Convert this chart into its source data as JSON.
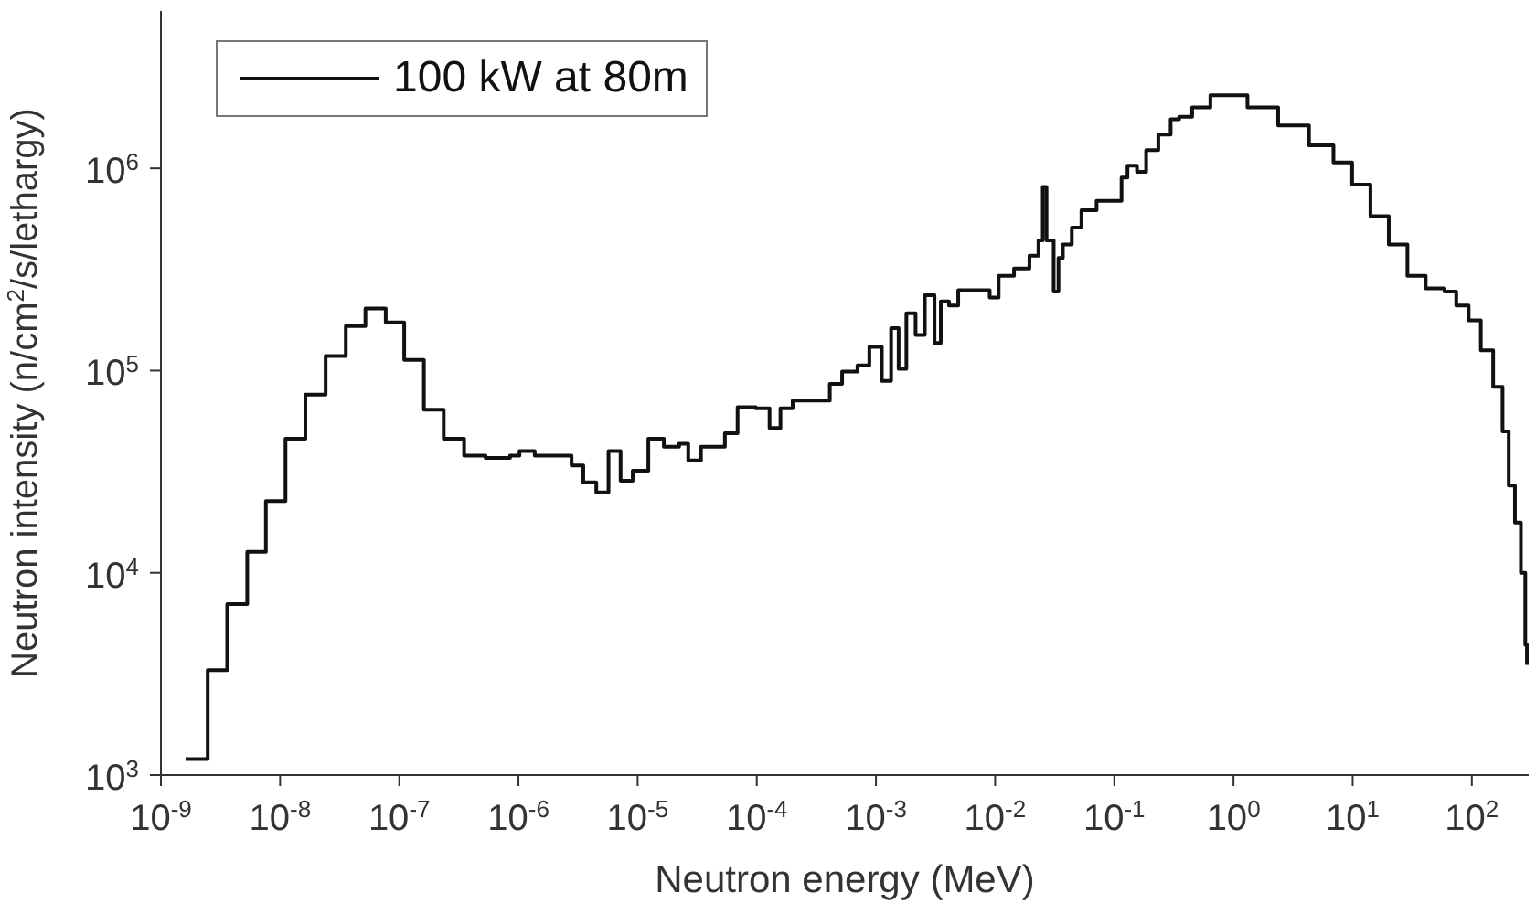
{
  "chart_data": {
    "type": "step",
    "xlabel": "Neutron energy (MeV)",
    "ylabel": "Neutron intensity (n/cm$^{2}$/s/lethargy)",
    "log": "xy",
    "legend": "top left",
    "marker": "none",
    "line_style": "solid",
    "xlim": [
      1e-09,
      300
    ],
    "ylim": [
      1000,
      6000000
    ],
    "xticks": [
      {
        "value": 1e-09,
        "label": "10$^{-9}$"
      },
      {
        "value": 1e-08,
        "label": "10$^{-8}$"
      },
      {
        "value": 1e-07,
        "label": "10$^{-7}$"
      },
      {
        "value": 1e-06,
        "label": "10$^{-6}$"
      },
      {
        "value": 1e-05,
        "label": "10$^{-5}$"
      },
      {
        "value": 0.0001,
        "label": "10$^{-4}$"
      },
      {
        "value": 0.001,
        "label": "10$^{-3}$"
      },
      {
        "value": 0.01,
        "label": "10$^{-2}$"
      },
      {
        "value": 0.1,
        "label": "10$^{-1}$"
      },
      {
        "value": 1,
        "label": "10$^{0}$"
      },
      {
        "value": 10,
        "label": "10$^{1}$"
      },
      {
        "value": 100,
        "label": "10$^{2}$"
      }
    ],
    "yticks": [
      {
        "value": 1000,
        "label": "10$^{3}$"
      },
      {
        "value": 10000,
        "label": "10$^{4}$"
      },
      {
        "value": 100000,
        "label": "10$^{5}$"
      },
      {
        "value": 1000000,
        "label": "10$^{6}$"
      }
    ],
    "series": [
      {
        "name": "100 kW at 80m",
        "color": "#111111",
        "x": [
          1.61e-09,
          2.47e-09,
          3.6e-09,
          5.3e-09,
          7.6e-09,
          1.11e-08,
          1.63e-08,
          2.41e-08,
          3.56e-08,
          5.2e-08,
          7.7e-08,
          1.1e-07,
          1.61e-07,
          2.36e-07,
          3.5e-07,
          5.3e-07,
          8.5e-07,
          1.02e-06,
          1.37e-06,
          2.79e-06,
          3.5e-06,
          4.5e-06,
          5.7e-06,
          7.2e-06,
          9.1e-06,
          1.23e-05,
          1.66e-05,
          2.23e-05,
          2.66e-05,
          3.4e-05,
          5.4e-05,
          6.9e-05,
          9.8e-05,
          0.000128,
          0.000158,
          0.0002,
          0.00041,
          0.00052,
          0.0007,
          0.00088,
          0.00112,
          0.00134,
          0.00155,
          0.0018,
          0.00215,
          0.00257,
          0.0031,
          0.0035,
          0.0041,
          0.0049,
          0.009,
          0.0107,
          0.0144,
          0.0194,
          0.0231,
          0.0251,
          0.027,
          0.031,
          0.034,
          0.037,
          0.044,
          0.053,
          0.071,
          0.115,
          0.129,
          0.155,
          0.185,
          0.234,
          0.297,
          0.35,
          0.45,
          0.64,
          0.97,
          1.31,
          2.37,
          4.3,
          6.9,
          9.9,
          14.1,
          20.1,
          28.8,
          41,
          59,
          74,
          94,
          119,
          151,
          181,
          204,
          230,
          258,
          281,
          290
        ],
        "values": [
          1200,
          3300,
          7000,
          12700,
          22600,
          46000,
          76000,
          118000,
          166000,
          203000,
          173000,
          113000,
          64000,
          46000,
          38000,
          37000,
          38000,
          40000,
          38000,
          34000,
          28000,
          25000,
          40000,
          28500,
          32000,
          46000,
          42000,
          43500,
          36000,
          42000,
          49000,
          66000,
          65000,
          52000,
          65000,
          71000,
          86000,
          99000,
          106000,
          131000,
          89000,
          162000,
          102000,
          192000,
          150000,
          236000,
          137000,
          220000,
          210000,
          250000,
          230000,
          294000,
          320000,
          370000,
          440000,
          810000,
          440000,
          246000,
          360000,
          420000,
          510000,
          620000,
          690000,
          900000,
          1030000,
          960000,
          1230000,
          1470000,
          1750000,
          1800000,
          2000000,
          2300000,
          2300000,
          2000000,
          1630000,
          1300000,
          1070000,
          830000,
          580000,
          420000,
          294000,
          255000,
          246000,
          210000,
          177000,
          126000,
          83000,
          50000,
          27000,
          17700,
          10000,
          4400,
          3500
        ]
      }
    ]
  }
}
